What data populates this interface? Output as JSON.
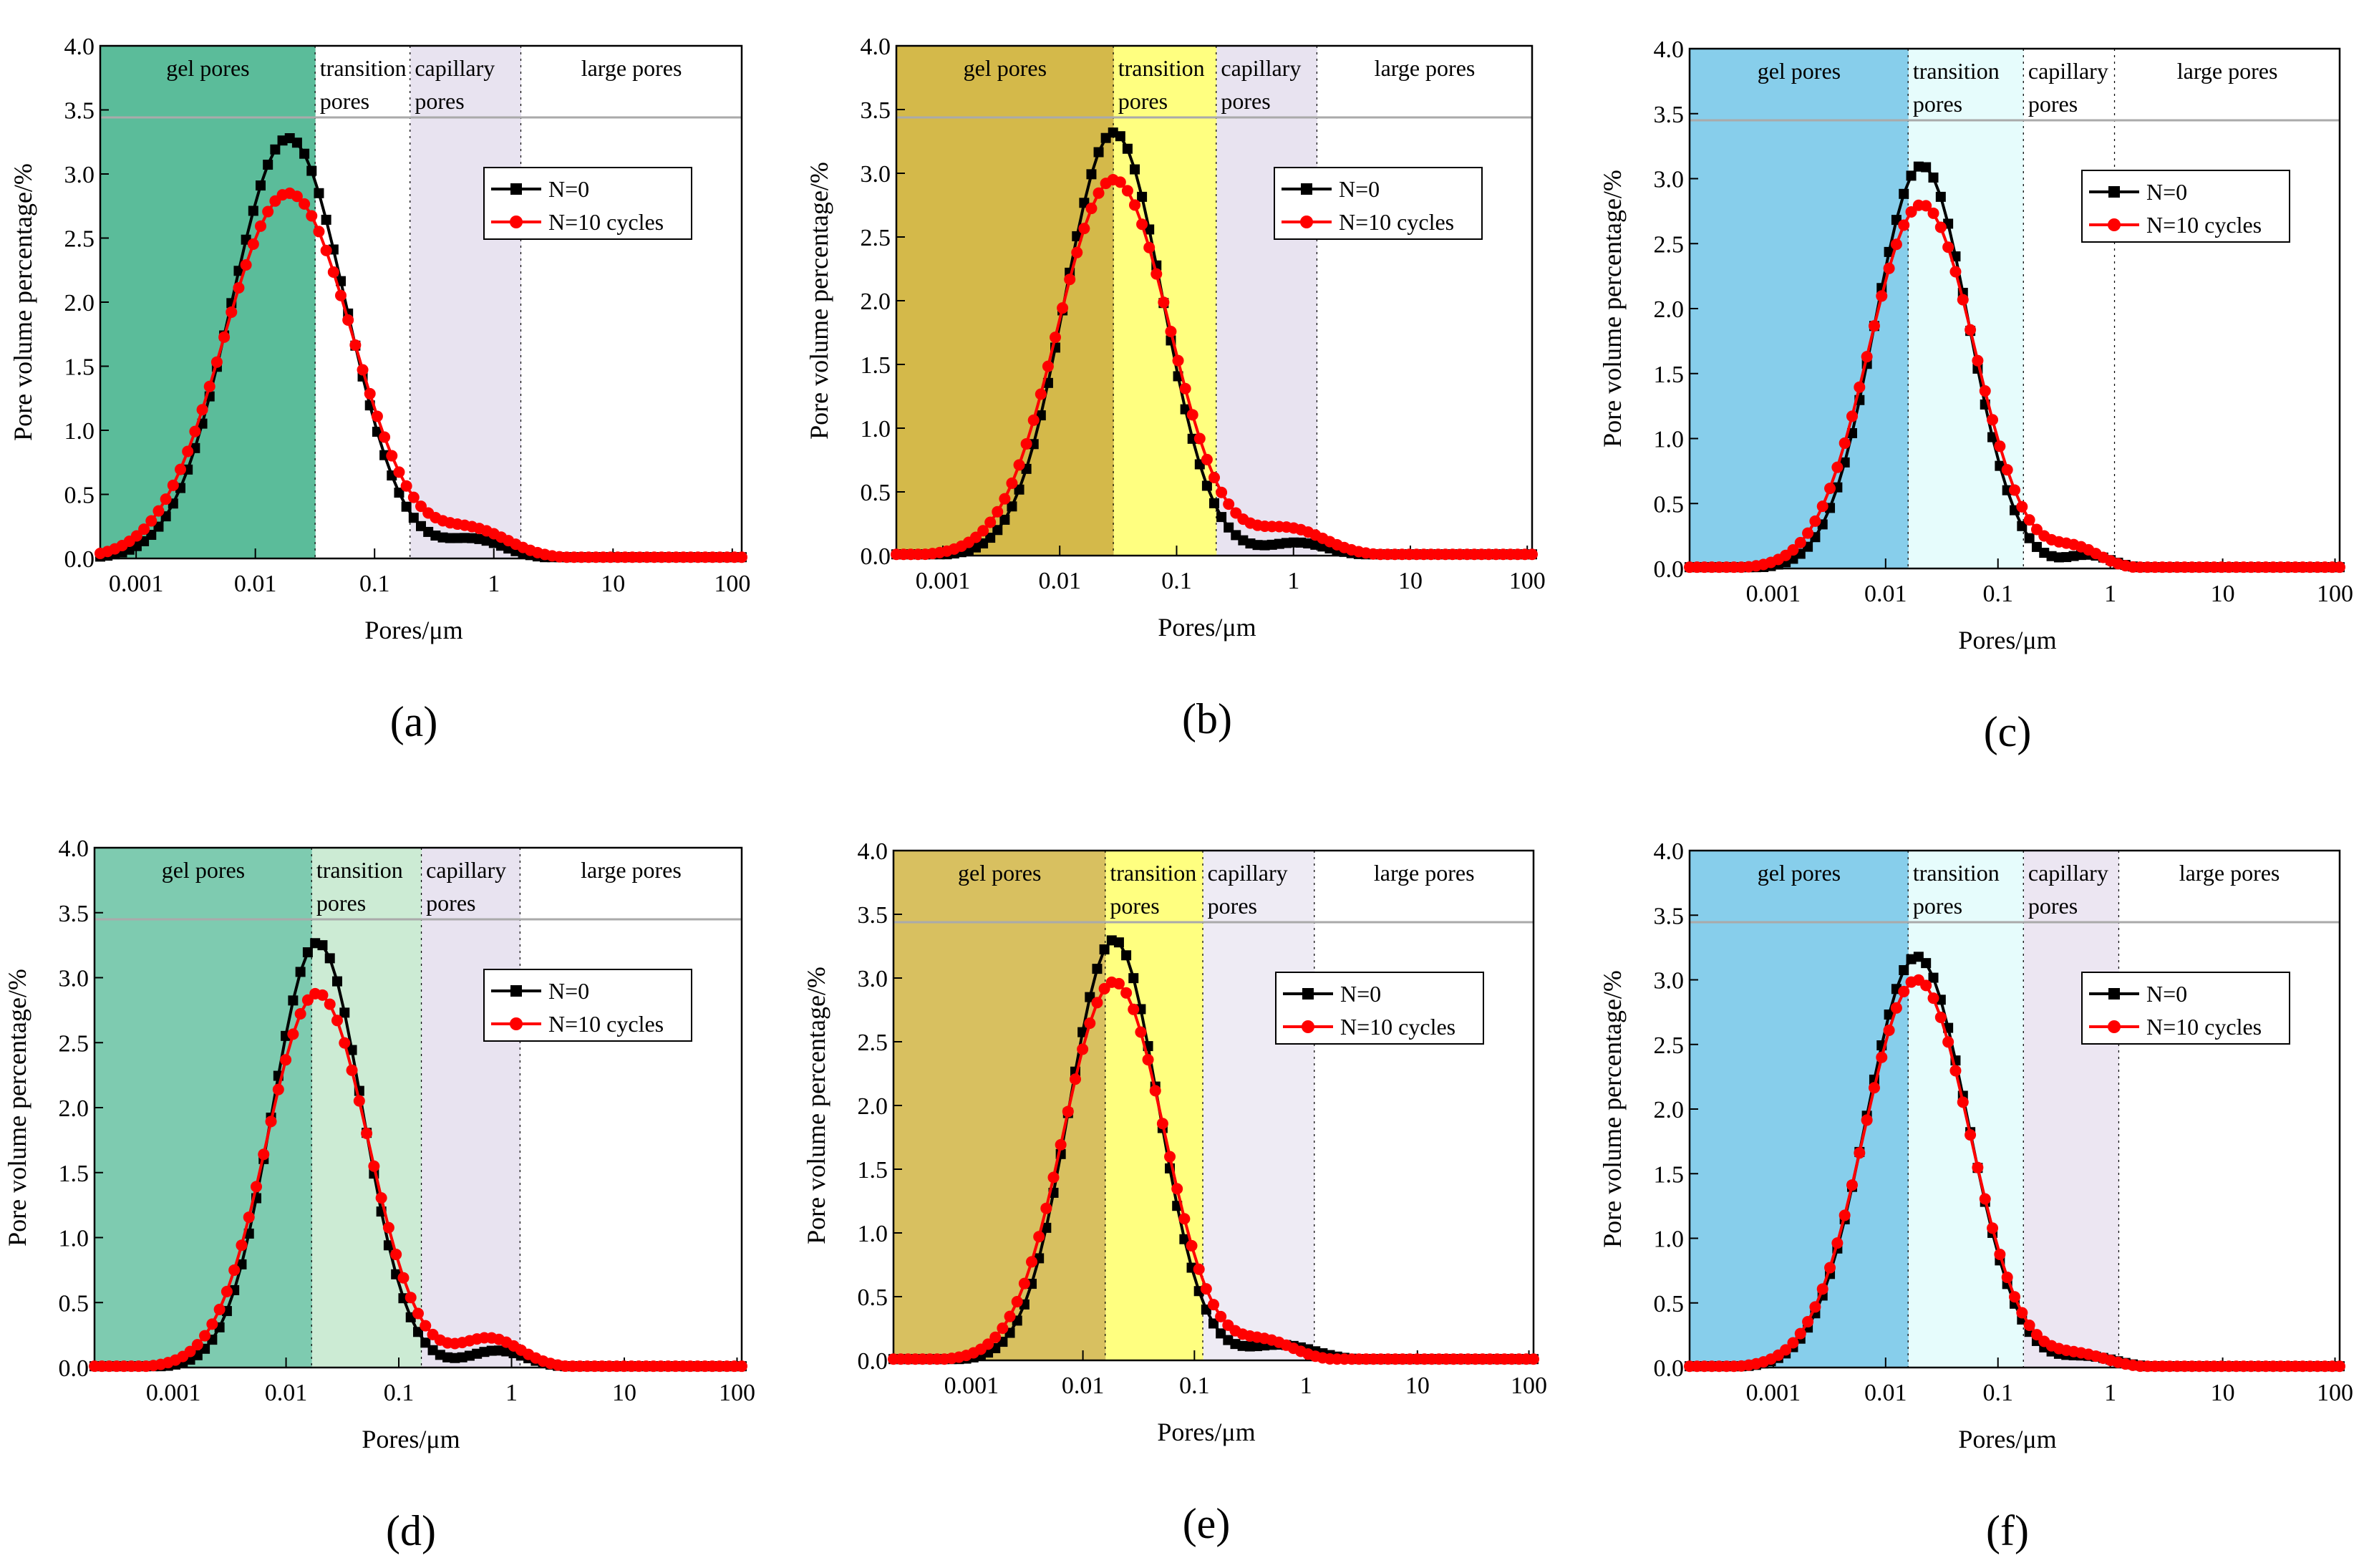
{
  "figure": {
    "xlabel": "Pores/μm",
    "ylabel": "Pore volume percentage/%",
    "series_names": [
      "N=0",
      "N=10 cycles"
    ],
    "series_colors": [
      "#000000",
      "#ff0000"
    ],
    "series_markers": [
      "square",
      "circle"
    ],
    "x_ticks": [
      0.001,
      0.01,
      0.1,
      1,
      10,
      100
    ],
    "x_tick_labels": [
      "0.001",
      "0.01",
      "0.1",
      "1",
      "10",
      "100"
    ],
    "y_ticks": [
      0,
      0.5,
      1,
      1.5,
      2,
      2.5,
      3,
      3.5,
      4
    ],
    "y_tick_labels": [
      "0.0",
      "0.5",
      "1.0",
      "1.5",
      "2.0",
      "2.5",
      "3.0",
      "3.5",
      "4.0"
    ]
  },
  "chart_data": [
    {
      "type": "line",
      "panel": "(a)",
      "x_scale": "log",
      "xlabel": "Pores/μm",
      "ylabel": "Pore volume percentage/%",
      "xlim": [
        0.0005,
        120
      ],
      "ylim": [
        0,
        4
      ],
      "regions": [
        {
          "label": [
            "gel pores"
          ],
          "from": 0.0005,
          "to": 0.032,
          "color": "#5bbc9a"
        },
        {
          "label": [
            "transition",
            "pores"
          ],
          "from": 0.032,
          "to": 0.2,
          "color": "#ffffff"
        },
        {
          "label": [
            "capillary",
            "pores"
          ],
          "from": 0.2,
          "to": 1.7,
          "color": "#e8e3f0"
        },
        {
          "label": [
            "large pores"
          ],
          "from": 1.7,
          "to": 120,
          "color": "#ffffff"
        }
      ],
      "series": [
        {
          "name": "N=0",
          "peaks": [
            {
              "x": 0.019,
              "height": 3.28,
              "width": 0.48
            },
            {
              "x": 0.7,
              "height": 0.14,
              "width": 0.25
            }
          ]
        },
        {
          "name": "N=10 cycles",
          "peaks": [
            {
              "x": 0.019,
              "height": 2.85,
              "width": 0.54
            },
            {
              "x": 0.7,
              "height": 0.2,
              "width": 0.3
            }
          ]
        }
      ]
    },
    {
      "type": "line",
      "panel": "(b)",
      "x_scale": "log",
      "xlabel": "Pores/μm",
      "ylabel": "Pore volume percentage/%",
      "xlim": [
        0.0004,
        110
      ],
      "ylim": [
        0,
        4
      ],
      "regions": [
        {
          "label": [
            "gel pores"
          ],
          "from": 0.0004,
          "to": 0.029,
          "color": "#d4b94a"
        },
        {
          "label": [
            "transition",
            "pores"
          ],
          "from": 0.029,
          "to": 0.22,
          "color": "#ffff80"
        },
        {
          "label": [
            "capillary",
            "pores"
          ],
          "from": 0.22,
          "to": 1.6,
          "color": "#e8e3f0"
        },
        {
          "label": [
            "large pores"
          ],
          "from": 1.6,
          "to": 110,
          "color": "#ffffff"
        }
      ],
      "series": [
        {
          "name": "N=0",
          "peaks": [
            {
              "x": 0.029,
              "height": 3.32,
              "width": 0.42
            },
            {
              "x": 1.1,
              "height": 0.1,
              "width": 0.25
            }
          ]
        },
        {
          "name": "N=10 cycles",
          "peaks": [
            {
              "x": 0.029,
              "height": 2.95,
              "width": 0.48
            },
            {
              "x": 0.95,
              "height": 0.2,
              "width": 0.3
            }
          ]
        }
      ]
    },
    {
      "type": "line",
      "panel": "(c)",
      "x_scale": "log",
      "xlabel": "Pores/μm",
      "ylabel": "Pore volume percentage/%",
      "xlim": [
        0.00018,
        110
      ],
      "ylim": [
        0,
        4
      ],
      "regions": [
        {
          "label": [
            "gel pores"
          ],
          "from": 0.00018,
          "to": 0.016,
          "color": "#87ceeb"
        },
        {
          "label": [
            "transition",
            "pores"
          ],
          "from": 0.016,
          "to": 0.17,
          "color": "#e6fcfc"
        },
        {
          "label": [
            "capillary",
            "pores"
          ],
          "from": 0.17,
          "to": 1.1,
          "color": "#ffffff"
        },
        {
          "label": [
            "large pores"
          ],
          "from": 1.1,
          "to": 110,
          "color": "#ffffff"
        }
      ],
      "series": [
        {
          "name": "N=0",
          "peaks": [
            {
              "x": 0.021,
              "height": 3.1,
              "width": 0.42
            },
            {
              "x": 0.65,
              "height": 0.1,
              "width": 0.2
            }
          ]
        },
        {
          "name": "N=10 cycles",
          "peaks": [
            {
              "x": 0.021,
              "height": 2.8,
              "width": 0.47
            },
            {
              "x": 0.5,
              "height": 0.14,
              "width": 0.22
            }
          ]
        }
      ]
    },
    {
      "type": "line",
      "panel": "(d)",
      "x_scale": "log",
      "xlabel": "Pores/μm",
      "ylabel": "Pore volume percentage/%",
      "xlim": [
        0.0002,
        110
      ],
      "ylim": [
        0,
        4
      ],
      "regions": [
        {
          "label": [
            "gel pores"
          ],
          "from": 0.0002,
          "to": 0.017,
          "color": "#7ecbb0"
        },
        {
          "label": [
            "transition",
            "pores"
          ],
          "from": 0.017,
          "to": 0.16,
          "color": "#ccebd4"
        },
        {
          "label": [
            "capillary",
            "pores"
          ],
          "from": 0.16,
          "to": 1.2,
          "color": "#e8e3f0"
        },
        {
          "label": [
            "large pores"
          ],
          "from": 1.2,
          "to": 110,
          "color": "#ffffff"
        }
      ],
      "series": [
        {
          "name": "N=0",
          "peaks": [
            {
              "x": 0.019,
              "height": 3.27,
              "width": 0.4
            },
            {
              "x": 0.75,
              "height": 0.13,
              "width": 0.25
            }
          ]
        },
        {
          "name": "N=10 cycles",
          "peaks": [
            {
              "x": 0.019,
              "height": 2.88,
              "width": 0.45
            },
            {
              "x": 0.65,
              "height": 0.22,
              "width": 0.27
            }
          ]
        }
      ]
    },
    {
      "type": "line",
      "panel": "(e)",
      "x_scale": "log",
      "xlabel": "Pores/μm",
      "ylabel": "Pore volume percentage/%",
      "xlim": [
        0.0002,
        110
      ],
      "ylim": [
        0,
        4
      ],
      "regions": [
        {
          "label": [
            "gel pores"
          ],
          "from": 0.0002,
          "to": 0.016,
          "color": "#d8c060"
        },
        {
          "label": [
            "transition",
            "pores"
          ],
          "from": 0.016,
          "to": 0.12,
          "color": "#ffff80"
        },
        {
          "label": [
            "capillary",
            "pores"
          ],
          "from": 0.12,
          "to": 1.2,
          "color": "#eeebf4"
        },
        {
          "label": [
            "large pores"
          ],
          "from": 1.2,
          "to": 110,
          "color": "#ffffff"
        }
      ],
      "series": [
        {
          "name": "N=0",
          "peaks": [
            {
              "x": 0.019,
              "height": 3.3,
              "width": 0.4
            },
            {
              "x": 0.6,
              "height": 0.12,
              "width": 0.3
            }
          ]
        },
        {
          "name": "N=10 cycles",
          "peaks": [
            {
              "x": 0.019,
              "height": 2.97,
              "width": 0.45
            },
            {
              "x": 0.45,
              "height": 0.14,
              "width": 0.25
            }
          ]
        }
      ]
    },
    {
      "type": "line",
      "panel": "(f)",
      "x_scale": "log",
      "xlabel": "Pores/μm",
      "ylabel": "Pore volume percentage/%",
      "xlim": [
        0.00018,
        110
      ],
      "ylim": [
        0,
        4
      ],
      "regions": [
        {
          "label": [
            "gel pores"
          ],
          "from": 0.00018,
          "to": 0.016,
          "color": "#87ceeb"
        },
        {
          "label": [
            "transition",
            "pores"
          ],
          "from": 0.016,
          "to": 0.17,
          "color": "#e6fcfc"
        },
        {
          "label": [
            "capillary",
            "pores"
          ],
          "from": 0.17,
          "to": 1.2,
          "color": "#ece6f2"
        },
        {
          "label": [
            "large pores"
          ],
          "from": 1.2,
          "to": 110,
          "color": "#ffffff"
        }
      ],
      "series": [
        {
          "name": "N=0",
          "peaks": [
            {
              "x": 0.019,
              "height": 3.18,
              "width": 0.45
            },
            {
              "x": 0.65,
              "height": 0.08,
              "width": 0.25
            }
          ]
        },
        {
          "name": "N=10 cycles",
          "peaks": [
            {
              "x": 0.019,
              "height": 3.0,
              "width": 0.47
            },
            {
              "x": 0.55,
              "height": 0.09,
              "width": 0.25
            }
          ]
        }
      ]
    }
  ]
}
